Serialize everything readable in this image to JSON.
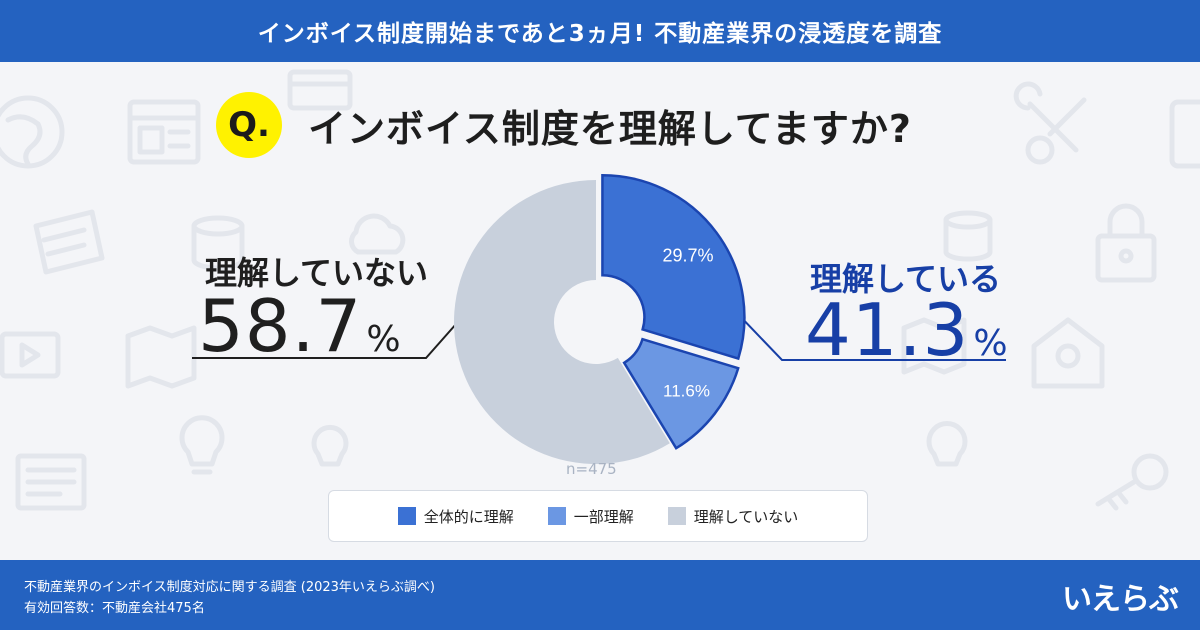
{
  "header": {
    "banner_title": "インボイス制度開始まであと3ヵ月! 不動産業界の浸透度を調査"
  },
  "question": {
    "badge": "Q.",
    "text": "インボイス制度を理解してますか?"
  },
  "callouts": {
    "left_label": "理解していない",
    "left_value": "58.7",
    "left_unit": "%",
    "right_label": "理解している",
    "right_value": "41.3",
    "right_unit": "%"
  },
  "sample_size": "n=475",
  "chart_data": {
    "type": "pie",
    "donut": true,
    "title": "",
    "categories": [
      "全体的に理解",
      "一部理解",
      "理解していない"
    ],
    "values": [
      29.7,
      11.6,
      58.7
    ],
    "data_labels": [
      "29.7%",
      "11.6%",
      ""
    ],
    "colors": [
      "#3b71d4",
      "#6b97e3",
      "#c8d0dc"
    ],
    "exploded": [
      0,
      1
    ],
    "start_angle_deg": 0,
    "direction": "clockwise",
    "legend_position": "bottom"
  },
  "legend": [
    {
      "label": "全体的に理解",
      "color": "#3b71d4"
    },
    {
      "label": "一部理解",
      "color": "#6b97e3"
    },
    {
      "label": "理解していない",
      "color": "#c8d0dc"
    }
  ],
  "footer": {
    "line1": "不動産業界のインボイス制度対応に関する調査 (2023年いえらぶ調べ)",
    "line2": "有効回答数：不動産会社475名",
    "logo": "いえらぶ"
  },
  "theme": {
    "banner": "#2462c0",
    "accent_dark": "#173fa6",
    "badge": "#fff200"
  },
  "background_icons": [
    "globe-icon",
    "browser-window-icon",
    "browser-window-icon",
    "wrench-icon",
    "phone-icon",
    "folder-icon",
    "database-icon",
    "cloud-icon",
    "database-icon",
    "lock-icon",
    "video-icon",
    "map-icon",
    "map-icon",
    "house-icon",
    "newspaper-icon",
    "lightbulb-icon",
    "lightbulb-icon",
    "lightbulb-icon",
    "key-icon"
  ]
}
